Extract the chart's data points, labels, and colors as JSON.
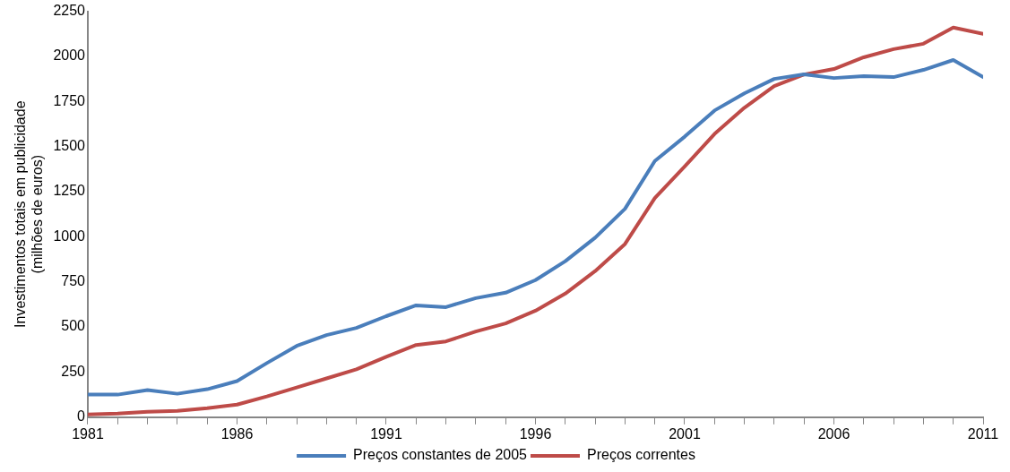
{
  "chart_data": {
    "type": "line",
    "ylabel": "Investimentos totais em publicidade\n(milhões de euros)",
    "x": [
      1981,
      1982,
      1983,
      1984,
      1985,
      1986,
      1987,
      1988,
      1989,
      1990,
      1991,
      1992,
      1993,
      1994,
      1995,
      1996,
      1997,
      1998,
      1999,
      2000,
      2001,
      2002,
      2003,
      2004,
      2005,
      2006,
      2007,
      2008,
      2009,
      2010,
      2011
    ],
    "series": [
      {
        "name": "Preços constantes de 2005",
        "color": "#4a7ebb",
        "values": [
          125,
          125,
          150,
          130,
          155,
          200,
          300,
          395,
          455,
          495,
          560,
          620,
          610,
          660,
          690,
          760,
          865,
          995,
          1155,
          1420,
          1555,
          1700,
          1795,
          1875,
          1900,
          1880,
          1890,
          1885,
          1925,
          1980,
          1885
        ]
      },
      {
        "name": "Preços correntes",
        "color": "#be4b48",
        "values": [
          15,
          20,
          30,
          35,
          50,
          70,
          115,
          165,
          215,
          265,
          335,
          400,
          420,
          475,
          520,
          590,
          685,
          810,
          960,
          1215,
          1390,
          1570,
          1715,
          1835,
          1900,
          1930,
          1995,
          2040,
          2070,
          2160,
          2125
        ]
      }
    ],
    "xlim": [
      1981,
      2011
    ],
    "xticks": [
      1981,
      {
        "value": 1982,
        "label": null
      },
      {
        "value": 1983,
        "label": null
      },
      {
        "value": 1984,
        "label": null
      },
      {
        "value": 1985,
        "label": null
      },
      1986,
      {
        "value": 1987,
        "label": null
      },
      {
        "value": 1988,
        "label": null
      },
      {
        "value": 1989,
        "label": null
      },
      {
        "value": 1990,
        "label": null
      },
      1991,
      {
        "value": 1992,
        "label": null
      },
      {
        "value": 1993,
        "label": null
      },
      {
        "value": 1994,
        "label": null
      },
      {
        "value": 1995,
        "label": null
      },
      1996,
      {
        "value": 1997,
        "label": null
      },
      {
        "value": 1998,
        "label": null
      },
      {
        "value": 1999,
        "label": null
      },
      {
        "value": 2000,
        "label": null
      },
      2001,
      {
        "value": 2002,
        "label": null
      },
      {
        "value": 2003,
        "label": null
      },
      {
        "value": 2004,
        "label": null
      },
      {
        "value": 2005,
        "label": null
      },
      2006,
      {
        "value": 2007,
        "label": null
      },
      {
        "value": 2008,
        "label": null
      },
      {
        "value": 2009,
        "label": null
      },
      {
        "value": 2010,
        "label": null
      },
      2011
    ],
    "ylim": [
      0,
      2250
    ],
    "yticks": [
      0,
      250,
      500,
      750,
      1000,
      1250,
      1500,
      1750,
      2000,
      2250
    ],
    "grid": false,
    "legend": "bottom",
    "marker": "none",
    "line_style": "solid"
  }
}
